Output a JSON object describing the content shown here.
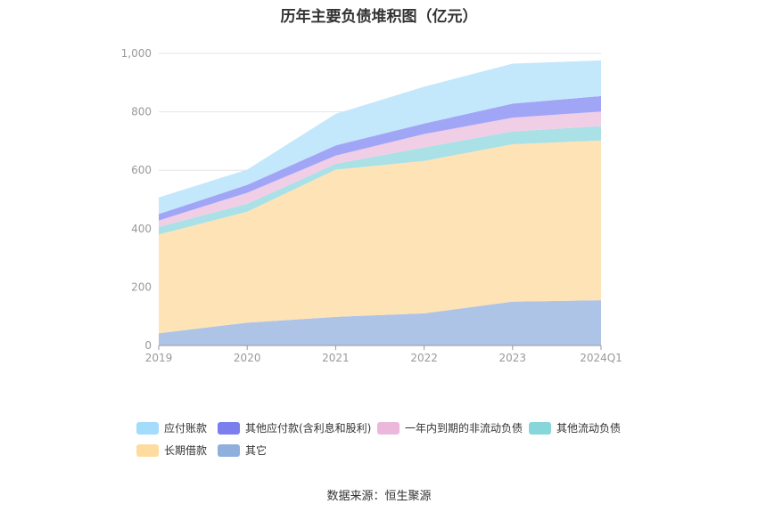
{
  "title": "历年主要负债堆积图（亿元）",
  "source": "数据来源：恒生聚源",
  "chart_data": {
    "type": "area",
    "stacked": true,
    "categories": [
      "2019",
      "2020",
      "2021",
      "2022",
      "2023",
      "2024Q1"
    ],
    "ylim": [
      0,
      1000
    ],
    "yticks": [
      "0",
      "200",
      "400",
      "600",
      "800",
      "1,000"
    ],
    "grid": true,
    "legend_position": "bottom",
    "series": [
      {
        "name": "其它",
        "color": "#aec4e6",
        "values": [
          42,
          78,
          98,
          110,
          150,
          155
        ]
      },
      {
        "name": "长期借款",
        "color": "#fee3b7",
        "values": [
          338,
          380,
          504,
          522,
          539,
          547
        ]
      },
      {
        "name": "其他流动负债",
        "color": "#a9e1e6",
        "values": [
          26,
          27,
          20,
          46,
          44,
          49
        ]
      },
      {
        "name": "一年内到期的非流动负债",
        "color": "#f0cee6",
        "values": [
          22,
          38,
          28,
          46,
          47,
          50
        ]
      },
      {
        "name": "其他应付款(含利息和股利)",
        "color": "#a1a5f5",
        "values": [
          22,
          27,
          35,
          36,
          48,
          53
        ]
      },
      {
        "name": "应付账款",
        "color": "#c3e7fb",
        "values": [
          57,
          52,
          108,
          126,
          137,
          122
        ]
      }
    ]
  },
  "legend": [
    {
      "name": "应付账款",
      "color": "#a4dcfb"
    },
    {
      "name": "其他应付款(含利息和股利)",
      "color": "#7b7fee"
    },
    {
      "name": "一年内到期的非流动负债",
      "color": "#ebb8dc"
    },
    {
      "name": "其他流动负债",
      "color": "#86d6da"
    },
    {
      "name": "长期借款",
      "color": "#fedca0"
    },
    {
      "name": "其它",
      "color": "#8fb0dc"
    }
  ]
}
